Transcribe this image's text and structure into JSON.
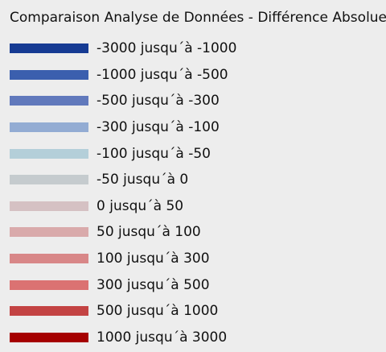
{
  "legend": {
    "title": "Comparaison Analyse de Données - Différence Absolue -",
    "items": [
      {
        "label": "-3000 jusqu´à -1000",
        "color": "#163b93"
      },
      {
        "label": "-1000 jusqu´à -500",
        "color": "#3b5fae"
      },
      {
        "label": "-500 jusqu´à -300",
        "color": "#6179bc"
      },
      {
        "label": "-300 jusqu´à -100",
        "color": "#93acd3"
      },
      {
        "label": "-100 jusqu´à -50",
        "color": "#b4cfd9"
      },
      {
        "label": "-50 jusqu´à 0",
        "color": "#c5cbce"
      },
      {
        "label": "0 jusqu´à 50",
        "color": "#d5c1c3"
      },
      {
        "label": "50 jusqu´à 100",
        "color": "#d9aaab"
      },
      {
        "label": "100 jusqu´à 300",
        "color": "#d88788"
      },
      {
        "label": "300 jusqu´à 500",
        "color": "#db7272"
      },
      {
        "label": "500 jusqu´à 1000",
        "color": "#c34343"
      },
      {
        "label": "1000 jusqu´à 3000",
        "color": "#a50000"
      }
    ]
  }
}
